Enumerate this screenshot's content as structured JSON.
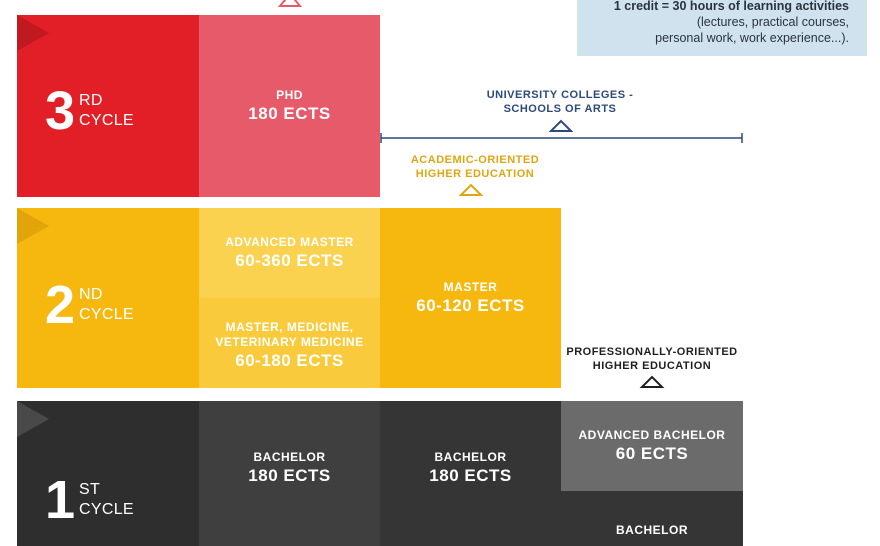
{
  "info": {
    "line1": "1 credit = 30 hours of learning activities",
    "line2": "(lectures, practical courses,",
    "line3": "personal work, work experience...)."
  },
  "cycles": {
    "third": {
      "number": "3",
      "suffix": "RD",
      "word": "CYCLE"
    },
    "second": {
      "number": "2",
      "suffix": "ND",
      "word": "CYCLE"
    },
    "first": {
      "number": "1",
      "suffix": "ST",
      "word": "CYCLE"
    }
  },
  "programs": {
    "phd": {
      "name": "PHD",
      "ects": "180 ECTS"
    },
    "advanced_master": {
      "name": "ADVANCED MASTER",
      "ects": "60-360 ECTS"
    },
    "master_medicine": {
      "name_line1": "MASTER, MEDICINE,",
      "name_line2": "VETERINARY MEDICINE",
      "ects": "60-180 ECTS"
    },
    "master": {
      "name": "MASTER",
      "ects": "60-120 ECTS"
    },
    "bachelor_university": {
      "name": "BACHELOR",
      "ects": "180 ECTS"
    },
    "bachelor_colleges": {
      "name": "BACHELOR",
      "ects": "180 ECTS"
    },
    "advanced_bachelor": {
      "name": "ADVANCED BACHELOR",
      "ects": "60 ECTS"
    },
    "bachelor_professional": {
      "name": "BACHELOR"
    }
  },
  "captions": {
    "university_colleges": {
      "line1": "UNIVERSITY COLLEGES -",
      "line2": "SCHOOLS OF ARTS"
    },
    "academic": {
      "line1": "ACADEMIC-ORIENTED",
      "line2": "HIGHER EDUCATION"
    },
    "professional": {
      "line1": "PROFESSIONALLY-ORIENTED",
      "line2": "HIGHER EDUCATION"
    }
  },
  "colors": {
    "red": "#e21f26",
    "red_dark": "#a4161b",
    "pink": "#e65a6a",
    "yellow": "#f6b80f",
    "yellow_light": "#f9cb3c",
    "yellow_lighter": "#fbd24f",
    "yellow_dark": "#c78d05",
    "charcoal": "#2e2e2e",
    "charcoal_mid": "#3f3f3f",
    "charcoal_dark": "#353535",
    "gray": "#6b6b6b",
    "navy": "#2c4a7c",
    "gold_text": "#e0a612",
    "black_text": "#1f1f1f"
  }
}
